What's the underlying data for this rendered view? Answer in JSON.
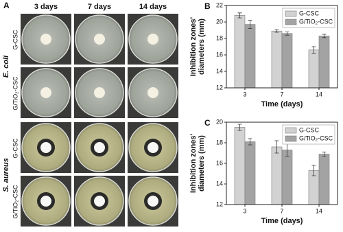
{
  "panel_a": {
    "label": "A",
    "columns": [
      "3 days",
      "7 days",
      "14 days"
    ],
    "rows": [
      {
        "organism": "E. coli",
        "samples": [
          "G-CSC",
          "G/TiO₂-CSC"
        ]
      },
      {
        "organism": "S. aureus",
        "samples": [
          "G-CSC",
          "G/TiO₂-CSC"
        ]
      }
    ]
  },
  "chart_data": [
    {
      "type": "bar",
      "panel_label": "B",
      "categories": [
        "3",
        "7",
        "14"
      ],
      "ylabel": [
        "Inhibition zones'",
        "diameters (mm)"
      ],
      "xlabel": "Time (days)",
      "ylim": [
        12,
        22
      ],
      "yticks": [
        12,
        14,
        16,
        18,
        20,
        22
      ],
      "legend": "upper right",
      "series": [
        {
          "name": "G-CSC",
          "color": "#d2d2d2",
          "values": [
            20.8,
            18.9,
            16.6
          ],
          "errors": [
            0.3,
            0.15,
            0.4
          ]
        },
        {
          "name": "G/TiO₂-CSC",
          "color": "#a3a3a3",
          "values": [
            19.7,
            18.6,
            18.3
          ],
          "errors": [
            0.5,
            0.2,
            0.2
          ]
        }
      ]
    },
    {
      "type": "bar",
      "panel_label": "C",
      "categories": [
        "3",
        "7",
        "14"
      ],
      "ylabel": [
        "Inhibition zones'",
        "diameters (mm)"
      ],
      "xlabel": "Time (days)",
      "ylim": [
        12,
        20
      ],
      "yticks": [
        12,
        14,
        16,
        18,
        20
      ],
      "legend": "upper right",
      "series": [
        {
          "name": "G-CSC",
          "color": "#d2d2d2",
          "values": [
            19.5,
            17.6,
            15.3
          ],
          "errors": [
            0.3,
            0.6,
            0.5
          ]
        },
        {
          "name": "G/TiO₂-CSC",
          "color": "#a3a3a3",
          "values": [
            18.1,
            17.3,
            16.9
          ],
          "errors": [
            0.3,
            0.6,
            0.2
          ]
        }
      ]
    }
  ]
}
